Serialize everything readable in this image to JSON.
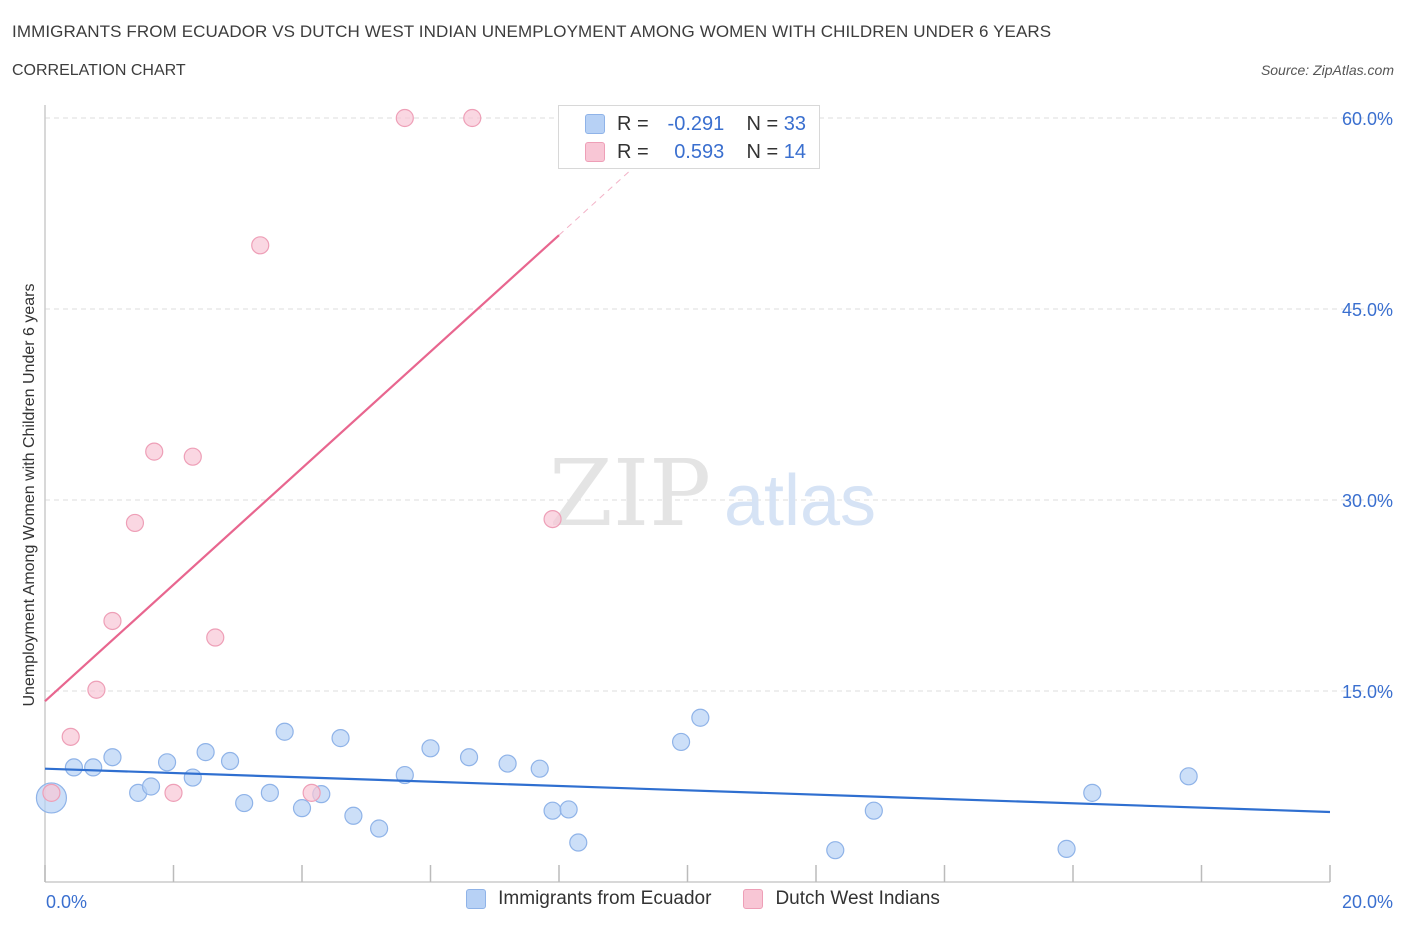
{
  "header": {
    "title": "IMMIGRANTS FROM ECUADOR VS DUTCH WEST INDIAN UNEMPLOYMENT AMONG WOMEN WITH CHILDREN UNDER 6 YEARS",
    "subtitle": "CORRELATION CHART",
    "source": "Source: ZipAtlas.com"
  },
  "watermark": {
    "zip": "ZIP",
    "atlas": "atlas"
  },
  "legend_top": {
    "rows": [
      {
        "r_label": "R =",
        "r_value": "-0.291",
        "n_label": "N =",
        "n_value": "33"
      },
      {
        "r_label": "R =",
        "r_value": "0.593",
        "n_label": "N =",
        "n_value": "14"
      }
    ]
  },
  "legend_bottom": [
    {
      "label": "Immigrants from Ecuador"
    },
    {
      "label": "Dutch West Indians"
    }
  ],
  "colors": {
    "blue_fill": "#b7d1f5",
    "blue_stroke": "#8fb3e8",
    "blue_line": "#2f6fd0",
    "pink_fill": "#f8c6d5",
    "pink_stroke": "#ee9fb7",
    "pink_line": "#e8668f",
    "tick_text": "#3a6fcf",
    "grid": "#dedede"
  },
  "chart_data": {
    "type": "scatter",
    "title": "IMMIGRANTS FROM ECUADOR VS DUTCH WEST INDIAN UNEMPLOYMENT AMONG WOMEN WITH CHILDREN UNDER 6 YEARS",
    "xlabel": "",
    "ylabel": "Unemployment Among Women with Children Under 6 years",
    "xlim": [
      0,
      20
    ],
    "ylim": [
      0,
      60
    ],
    "x_tick_labels": [
      "0.0%",
      "20.0%"
    ],
    "y_ticks": [
      15,
      30,
      45,
      60
    ],
    "y_tick_labels": [
      "15.0%",
      "30.0%",
      "45.0%",
      "60.0%"
    ],
    "grid": true,
    "legend_position": "bottom",
    "series": [
      {
        "name": "Immigrants from Ecuador",
        "points": [
          [
            0.1,
            6.6
          ],
          [
            0.45,
            9.0
          ],
          [
            0.75,
            9.0
          ],
          [
            1.05,
            9.8
          ],
          [
            1.45,
            7.0
          ],
          [
            1.65,
            7.5
          ],
          [
            1.9,
            9.4
          ],
          [
            2.3,
            8.2
          ],
          [
            2.5,
            10.2
          ],
          [
            2.88,
            9.5
          ],
          [
            3.1,
            6.2
          ],
          [
            3.5,
            7.0
          ],
          [
            3.73,
            11.8
          ],
          [
            4.0,
            5.8
          ],
          [
            4.3,
            6.9
          ],
          [
            4.6,
            11.3
          ],
          [
            4.8,
            5.2
          ],
          [
            5.2,
            4.2
          ],
          [
            5.6,
            8.4
          ],
          [
            6.0,
            10.5
          ],
          [
            6.6,
            9.8
          ],
          [
            7.2,
            9.3
          ],
          [
            7.7,
            8.9
          ],
          [
            7.9,
            5.6
          ],
          [
            8.15,
            5.7
          ],
          [
            8.3,
            3.1
          ],
          [
            9.9,
            11.0
          ],
          [
            10.2,
            12.9
          ],
          [
            12.3,
            2.5
          ],
          [
            12.9,
            5.6
          ],
          [
            15.9,
            2.6
          ],
          [
            16.3,
            7.0
          ],
          [
            17.8,
            8.3
          ]
        ],
        "trend": {
          "x": [
            0,
            20
          ],
          "y": [
            8.9,
            5.5
          ]
        }
      },
      {
        "name": "Dutch West Indians",
        "points": [
          [
            0.1,
            7.0
          ],
          [
            0.4,
            11.4
          ],
          [
            0.8,
            15.1
          ],
          [
            1.05,
            20.5
          ],
          [
            1.4,
            28.2
          ],
          [
            1.7,
            33.8
          ],
          [
            2.0,
            7.0
          ],
          [
            2.3,
            33.4
          ],
          [
            2.65,
            19.2
          ],
          [
            3.35,
            50.0
          ],
          [
            4.15,
            7.0
          ],
          [
            5.6,
            60.0
          ],
          [
            6.65,
            60.0
          ],
          [
            7.9,
            28.5
          ]
        ],
        "trend": {
          "x": [
            0,
            8.0
          ],
          "y": [
            14.2,
            50.8
          ]
        },
        "trend_extension": {
          "x": [
            8.0,
            9.2
          ],
          "y": [
            50.8,
            56.3
          ]
        }
      }
    ]
  }
}
